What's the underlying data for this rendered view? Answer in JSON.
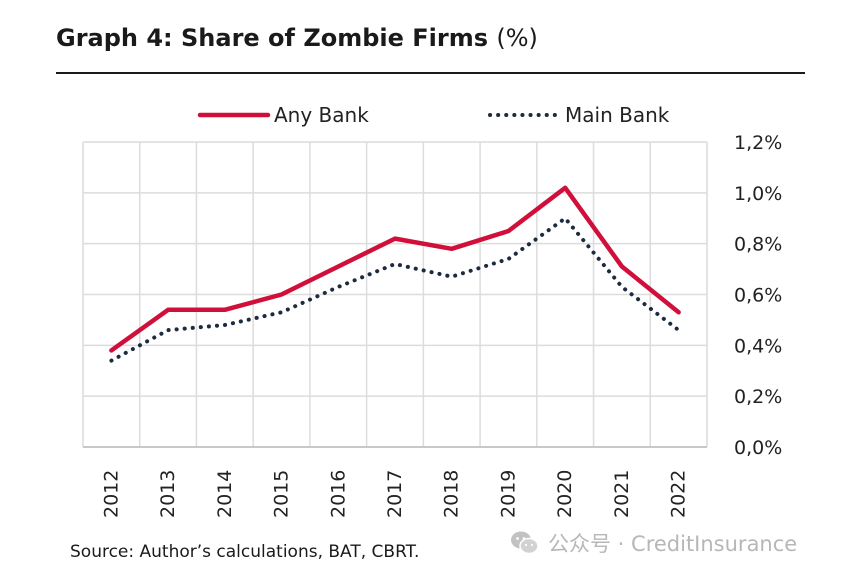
{
  "title": {
    "main": "Graph 4: Share of Zombie Firms",
    "unit": "(%)"
  },
  "source": "Source: Author’s calculations, BAT, CBRT.",
  "watermark": {
    "text": "公众号 · CreditInsurance",
    "icon": "wechat-logo-icon"
  },
  "colors": {
    "any_bank": "#d0103a",
    "main_bank": "#1c2b40",
    "grid": "#dcdcdc"
  },
  "chart_data": {
    "type": "line",
    "categories": [
      "2012",
      "2013",
      "2014",
      "2015",
      "2016",
      "2017",
      "2018",
      "2019",
      "2020",
      "2021",
      "2022"
    ],
    "series": [
      {
        "name": "Any Bank",
        "style": "solid",
        "values": [
          0.38,
          0.54,
          0.54,
          0.6,
          0.71,
          0.82,
          0.78,
          0.85,
          1.02,
          0.71,
          0.53
        ]
      },
      {
        "name": "Main Bank",
        "style": "dotted",
        "values": [
          0.34,
          0.46,
          0.48,
          0.53,
          0.63,
          0.72,
          0.67,
          0.74,
          0.9,
          0.63,
          0.46
        ]
      }
    ],
    "y_ticks": [
      "0,0%",
      "0,2%",
      "0,4%",
      "0,6%",
      "0,8%",
      "1,0%",
      "1,2%"
    ],
    "ylim": [
      0,
      1.2
    ],
    "y_axis_side": "right",
    "x_tick_rotation": "vertical",
    "grid": true,
    "legend_position": "top"
  }
}
